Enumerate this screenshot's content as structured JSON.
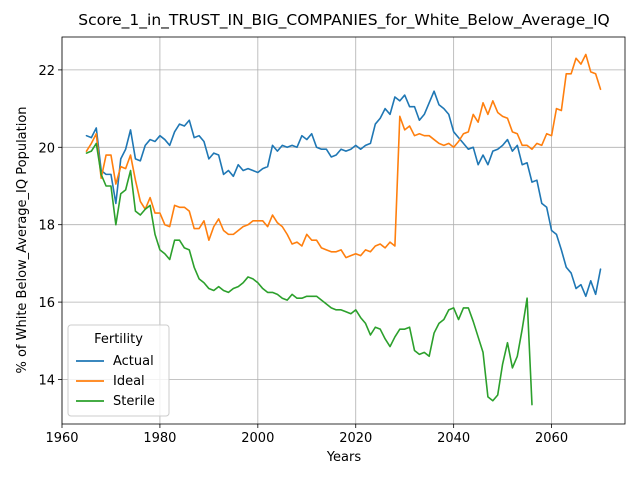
{
  "chart_data": {
    "type": "line",
    "title": "Score_1_in_TRUST_IN_BIG_COMPANIES_for_White_Below_Average_IQ",
    "xlabel": "Years",
    "ylabel": "% of White Below_Average_IQ Population",
    "xlim": [
      1960,
      2075
    ],
    "ylim": [
      12.85,
      22.85
    ],
    "xticks": [
      1960,
      1980,
      2000,
      2020,
      2040,
      2060
    ],
    "yticks": [
      14,
      16,
      18,
      20,
      22
    ],
    "grid": true,
    "legend": {
      "title": "Fertility",
      "placement": "lower-left",
      "entries": [
        "Actual",
        "Ideal",
        "Sterile"
      ]
    },
    "series": [
      {
        "name": "Actual",
        "color": "#1f77b4",
        "x": [
          1965,
          1966,
          1967,
          1968,
          1969,
          1970,
          1971,
          1972,
          1973,
          1974,
          1975,
          1976,
          1977,
          1978,
          1979,
          1980,
          1981,
          1982,
          1983,
          1984,
          1985,
          1986,
          1987,
          1988,
          1989,
          1990,
          1991,
          1992,
          1993,
          1994,
          1995,
          1996,
          1997,
          1998,
          1999,
          2000,
          2001,
          2002,
          2003,
          2004,
          2005,
          2006,
          2007,
          2008,
          2009,
          2010,
          2011,
          2012,
          2013,
          2014,
          2015,
          2016,
          2017,
          2018,
          2019,
          2020,
          2021,
          2022,
          2023,
          2024,
          2025,
          2026,
          2027,
          2028,
          2029,
          2030,
          2031,
          2032,
          2033,
          2034,
          2035,
          2036,
          2037,
          2038,
          2039,
          2040,
          2041,
          2042,
          2043,
          2044,
          2045,
          2046,
          2047,
          2048,
          2049,
          2050,
          2051,
          2052,
          2053,
          2054,
          2055,
          2056,
          2057,
          2058,
          2059,
          2060,
          2061,
          2062,
          2063,
          2064,
          2065,
          2066,
          2067,
          2068,
          2069,
          2070
        ],
        "values": [
          20.3,
          20.25,
          20.5,
          19.4,
          19.3,
          19.3,
          18.55,
          19.7,
          19.95,
          20.45,
          19.7,
          19.65,
          20.05,
          20.2,
          20.15,
          20.3,
          20.2,
          20.05,
          20.4,
          20.6,
          20.55,
          20.7,
          20.25,
          20.3,
          20.15,
          19.7,
          19.85,
          19.8,
          19.3,
          19.4,
          19.25,
          19.55,
          19.4,
          19.45,
          19.4,
          19.35,
          19.45,
          19.5,
          20.05,
          19.9,
          20.05,
          20.0,
          20.05,
          20.0,
          20.3,
          20.2,
          20.35,
          20.0,
          19.95,
          19.95,
          19.75,
          19.8,
          19.95,
          19.9,
          19.95,
          20.05,
          19.95,
          20.05,
          20.1,
          20.6,
          20.75,
          21.0,
          20.85,
          21.3,
          21.2,
          21.35,
          21.05,
          21.05,
          20.7,
          20.85,
          21.15,
          21.45,
          21.1,
          21.0,
          20.85,
          20.4,
          20.25,
          20.1,
          19.95,
          20.0,
          19.55,
          19.8,
          19.55,
          19.9,
          19.95,
          20.05,
          20.2,
          19.9,
          20.05,
          19.55,
          19.6,
          19.1,
          19.15,
          18.55,
          18.45,
          17.85,
          17.75,
          17.35,
          16.9,
          16.75,
          16.35,
          16.45,
          16.15,
          16.55,
          16.2,
          16.85
        ]
      },
      {
        "name": "Ideal",
        "color": "#ff7f0e",
        "x": [
          1965,
          1966,
          1967,
          1968,
          1969,
          1970,
          1971,
          1972,
          1973,
          1974,
          1975,
          1976,
          1977,
          1978,
          1979,
          1980,
          1981,
          1982,
          1983,
          1984,
          1985,
          1986,
          1987,
          1988,
          1989,
          1990,
          1991,
          1992,
          1993,
          1994,
          1995,
          1996,
          1997,
          1998,
          1999,
          2000,
          2001,
          2002,
          2003,
          2004,
          2005,
          2006,
          2007,
          2008,
          2009,
          2010,
          2011,
          2012,
          2013,
          2014,
          2015,
          2016,
          2017,
          2018,
          2019,
          2020,
          2021,
          2022,
          2023,
          2024,
          2025,
          2026,
          2027,
          2028,
          2029,
          2030,
          2031,
          2032,
          2033,
          2034,
          2035,
          2036,
          2037,
          2038,
          2039,
          2040,
          2041,
          2042,
          2043,
          2044,
          2045,
          2046,
          2047,
          2048,
          2049,
          2050,
          2051,
          2052,
          2053,
          2054,
          2055,
          2056,
          2057,
          2058,
          2059,
          2060,
          2061,
          2062,
          2063,
          2064,
          2065,
          2066,
          2067,
          2068,
          2069,
          2070
        ],
        "values": [
          19.9,
          20.1,
          20.35,
          19.2,
          19.8,
          19.8,
          19.05,
          19.5,
          19.45,
          19.8,
          19.15,
          18.6,
          18.4,
          18.7,
          18.3,
          18.3,
          18.0,
          17.95,
          18.5,
          18.45,
          18.45,
          18.35,
          17.9,
          17.9,
          18.1,
          17.6,
          17.95,
          18.15,
          17.85,
          17.75,
          17.75,
          17.85,
          17.95,
          18.0,
          18.1,
          18.1,
          18.1,
          17.95,
          18.25,
          18.05,
          17.95,
          17.75,
          17.5,
          17.55,
          17.45,
          17.75,
          17.6,
          17.6,
          17.4,
          17.35,
          17.3,
          17.3,
          17.35,
          17.15,
          17.2,
          17.25,
          17.2,
          17.35,
          17.3,
          17.45,
          17.5,
          17.4,
          17.55,
          17.45,
          20.8,
          20.45,
          20.55,
          20.3,
          20.35,
          20.3,
          20.3,
          20.2,
          20.1,
          20.05,
          20.1,
          20.0,
          20.15,
          20.35,
          20.4,
          20.85,
          20.65,
          21.15,
          20.85,
          21.2,
          20.9,
          20.8,
          20.75,
          20.4,
          20.35,
          20.05,
          20.05,
          19.95,
          20.1,
          20.05,
          20.35,
          20.3,
          21.0,
          20.95,
          21.9,
          21.9,
          22.3,
          22.15,
          22.4,
          21.95,
          21.9,
          21.5
        ]
      },
      {
        "name": "Sterile",
        "color": "#2ca02c",
        "x": [
          1965,
          1966,
          1967,
          1968,
          1969,
          1970,
          1971,
          1972,
          1973,
          1974,
          1975,
          1976,
          1977,
          1978,
          1979,
          1980,
          1981,
          1982,
          1983,
          1984,
          1985,
          1986,
          1987,
          1988,
          1989,
          1990,
          1991,
          1992,
          1993,
          1994,
          1995,
          1996,
          1997,
          1998,
          1999,
          2000,
          2001,
          2002,
          2003,
          2004,
          2005,
          2006,
          2007,
          2008,
          2009,
          2010,
          2011,
          2012,
          2013,
          2014,
          2015,
          2016,
          2017,
          2018,
          2019,
          2020,
          2021,
          2022,
          2023,
          2024,
          2025,
          2026,
          2027,
          2028,
          2029,
          2030,
          2031,
          2032,
          2033,
          2034,
          2035,
          2036,
          2037,
          2038,
          2039,
          2040,
          2041,
          2042,
          2043,
          2044,
          2045,
          2046,
          2047,
          2048,
          2049,
          2050,
          2051,
          2052,
          2053,
          2054,
          2055,
          2056
        ],
        "values": [
          19.85,
          19.9,
          20.1,
          19.3,
          19.0,
          19.0,
          18.0,
          18.8,
          18.9,
          19.4,
          18.35,
          18.25,
          18.4,
          18.5,
          17.75,
          17.35,
          17.25,
          17.1,
          17.6,
          17.6,
          17.4,
          17.35,
          16.9,
          16.6,
          16.5,
          16.35,
          16.3,
          16.4,
          16.3,
          16.25,
          16.35,
          16.4,
          16.5,
          16.65,
          16.6,
          16.5,
          16.35,
          16.25,
          16.25,
          16.2,
          16.1,
          16.05,
          16.2,
          16.1,
          16.1,
          16.15,
          16.15,
          16.15,
          16.05,
          15.95,
          15.85,
          15.8,
          15.8,
          15.75,
          15.7,
          15.8,
          15.6,
          15.45,
          15.15,
          15.35,
          15.3,
          15.05,
          14.85,
          15.1,
          15.3,
          15.3,
          15.35,
          14.75,
          14.65,
          14.7,
          14.6,
          15.2,
          15.45,
          15.55,
          15.8,
          15.85,
          15.55,
          15.85,
          15.85,
          15.5,
          15.1,
          14.7,
          13.55,
          13.45,
          13.6,
          14.4,
          14.95,
          14.3,
          14.6,
          15.3,
          16.1,
          13.35
        ]
      }
    ]
  }
}
